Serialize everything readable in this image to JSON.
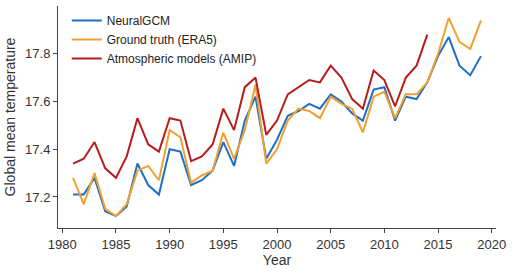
{
  "chart_data": {
    "type": "line",
    "x_label": "Year",
    "y_label": "Global mean temperature",
    "x": [
      1981,
      1982,
      1983,
      1984,
      1985,
      1986,
      1987,
      1988,
      1989,
      1990,
      1991,
      1992,
      1993,
      1994,
      1995,
      1996,
      1997,
      1998,
      1999,
      2000,
      2001,
      2002,
      2003,
      2004,
      2005,
      2006,
      2007,
      2008,
      2009,
      2010,
      2011,
      2012,
      2013,
      2014,
      2015,
      2016,
      2017,
      2018,
      2019
    ],
    "series": [
      {
        "name": "NeuralGCM",
        "color": "#1f6fc5",
        "values": [
          17.21,
          17.21,
          17.28,
          17.14,
          17.12,
          17.16,
          17.34,
          17.25,
          17.21,
          17.4,
          17.39,
          17.25,
          17.27,
          17.31,
          17.43,
          17.33,
          17.52,
          17.62,
          17.36,
          17.44,
          17.54,
          17.56,
          17.59,
          17.57,
          17.63,
          17.6,
          17.55,
          17.52,
          17.65,
          17.66,
          17.52,
          17.62,
          17.61,
          17.68,
          17.79,
          17.87,
          17.75,
          17.71,
          17.79
        ]
      },
      {
        "name": "Ground truth (ERA5)",
        "color": "#f0a030",
        "values": [
          17.28,
          17.17,
          17.3,
          17.15,
          17.12,
          17.17,
          17.31,
          17.33,
          17.27,
          17.48,
          17.45,
          17.26,
          17.29,
          17.31,
          17.47,
          17.36,
          17.48,
          17.67,
          17.34,
          17.4,
          17.52,
          17.57,
          17.56,
          17.53,
          17.62,
          17.59,
          17.57,
          17.47,
          17.62,
          17.64,
          17.53,
          17.63,
          17.63,
          17.68,
          17.8,
          17.95,
          17.85,
          17.82,
          17.94
        ]
      },
      {
        "name": "Atmospheric models (AMIP)",
        "color": "#b71c1c",
        "values": [
          17.34,
          17.36,
          17.43,
          17.32,
          17.28,
          17.37,
          17.53,
          17.42,
          17.39,
          17.53,
          17.52,
          17.35,
          17.37,
          17.42,
          17.57,
          17.48,
          17.66,
          17.7,
          17.46,
          17.52,
          17.63,
          17.66,
          17.69,
          17.68,
          17.75,
          17.7,
          17.61,
          17.57,
          17.73,
          17.69,
          17.58,
          17.7,
          17.75,
          17.88,
          null,
          null,
          null,
          null,
          null
        ]
      }
    ],
    "xlim": [
      1979.6,
      2020.4
    ],
    "xticks": [
      1980,
      1985,
      1990,
      1995,
      2000,
      2005,
      2010,
      2015,
      2020
    ],
    "ylim": [
      17.07,
      18.0
    ],
    "yticks": [
      17.2,
      17.4,
      17.6,
      17.8
    ],
    "grid": false,
    "legend": "top-left"
  }
}
